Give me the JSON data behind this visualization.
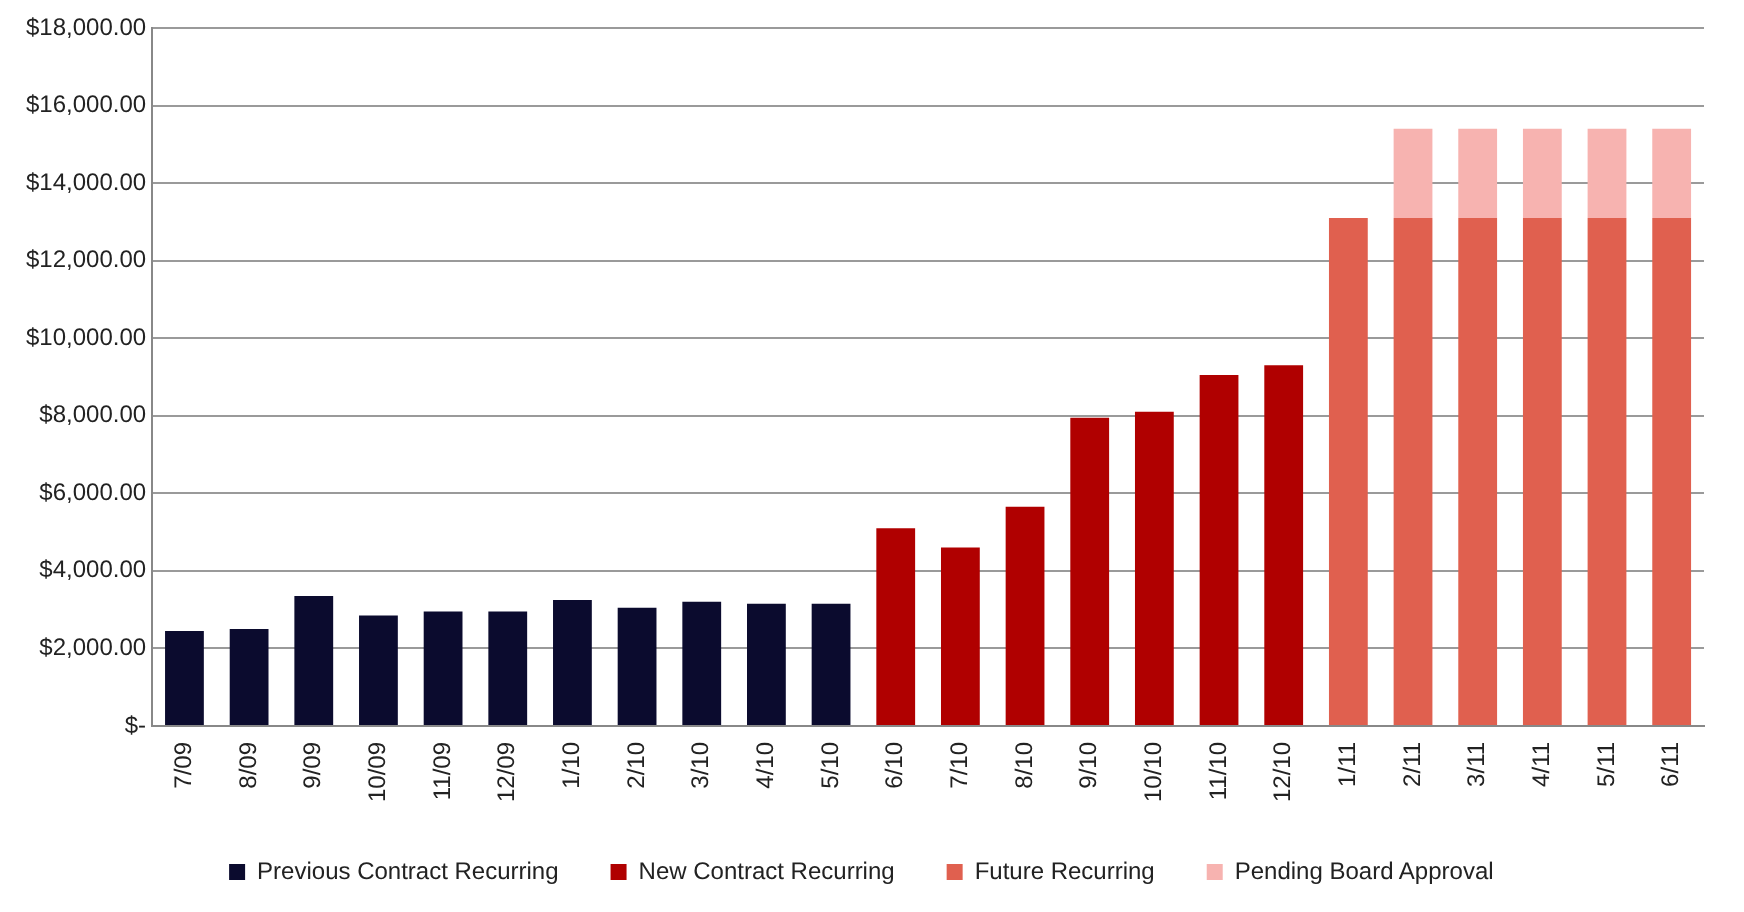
{
  "chart_data": {
    "type": "bar",
    "stacked": true,
    "categories": [
      "7/09",
      "8/09",
      "9/09",
      "10/09",
      "11/09",
      "12/09",
      "1/10",
      "2/10",
      "3/10",
      "4/10",
      "5/10",
      "6/10",
      "7/10",
      "8/10",
      "9/10",
      "10/10",
      "11/10",
      "12/10",
      "1/11",
      "2/11",
      "3/11",
      "4/11",
      "5/11",
      "6/11"
    ],
    "series": [
      {
        "name": "Previous Contract Recurring",
        "color": "#0b0b2e",
        "values": [
          2450,
          2500,
          3350,
          2850,
          2950,
          2950,
          3250,
          3050,
          3200,
          3150,
          3150,
          null,
          null,
          null,
          null,
          null,
          null,
          null,
          null,
          null,
          null,
          null,
          null,
          null
        ]
      },
      {
        "name": "New Contract Recurring",
        "color": "#b00000",
        "values": [
          null,
          null,
          null,
          null,
          null,
          null,
          null,
          null,
          null,
          null,
          null,
          5100,
          4600,
          5650,
          7950,
          8100,
          9050,
          9300,
          null,
          null,
          null,
          null,
          null,
          null
        ]
      },
      {
        "name": "Future Recurring",
        "color": "#e0604f",
        "values": [
          null,
          null,
          null,
          null,
          null,
          null,
          null,
          null,
          null,
          null,
          null,
          null,
          null,
          null,
          null,
          null,
          null,
          null,
          13100,
          13100,
          13100,
          13100,
          13100,
          13100
        ]
      },
      {
        "name": "Pending Board Approval",
        "color": "#f7b3b0",
        "values": [
          null,
          null,
          null,
          null,
          null,
          null,
          null,
          null,
          null,
          null,
          null,
          null,
          null,
          null,
          null,
          null,
          null,
          null,
          null,
          2300,
          2300,
          2300,
          2300,
          2300
        ]
      }
    ],
    "ylim": [
      0,
      18000
    ],
    "yticks": [
      {
        "value": 0,
        "label": "$-"
      },
      {
        "value": 2000,
        "label": "$2,000.00"
      },
      {
        "value": 4000,
        "label": "$4,000.00"
      },
      {
        "value": 6000,
        "label": "$6,000.00"
      },
      {
        "value": 8000,
        "label": "$8,000.00"
      },
      {
        "value": 10000,
        "label": "$10,000.00"
      },
      {
        "value": 12000,
        "label": "$12,000.00"
      },
      {
        "value": 14000,
        "label": "$14,000.00"
      },
      {
        "value": 16000,
        "label": "$16,000.00"
      },
      {
        "value": 18000,
        "label": "$18,000.00"
      }
    ],
    "grid": "y",
    "legend": "bottom"
  }
}
